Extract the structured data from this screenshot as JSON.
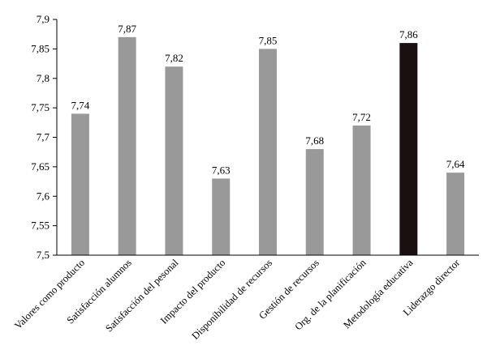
{
  "chart_data": {
    "type": "bar",
    "categories": [
      "Valores como producto",
      "Satisfacción alumnos",
      "Satisfacción del pesonal",
      "Impacto del producto",
      "Disponibilidad de recursos",
      "Gestión de recursos",
      "Org. de la planificación",
      "Metodología educativa",
      "Liderazgo director"
    ],
    "values": [
      7.74,
      7.87,
      7.82,
      7.63,
      7.85,
      7.68,
      7.72,
      7.86,
      7.64
    ],
    "data_labels": [
      "7,74",
      "7,87",
      "7,82",
      "7,63",
      "7,85",
      "7,68",
      "7,72",
      "7,86",
      "7,64"
    ],
    "ylim": [
      7.5,
      7.9
    ],
    "y_ticks": [
      7.5,
      7.55,
      7.6,
      7.65,
      7.7,
      7.75,
      7.8,
      7.85,
      7.9
    ],
    "y_tick_labels": [
      "7,5",
      "7,55",
      "7,6",
      "7,65",
      "7,7",
      "7,75",
      "7,8",
      "7,85",
      "7,9"
    ],
    "bar_colors": [
      "#999999",
      "#999999",
      "#999999",
      "#999999",
      "#999999",
      "#999999",
      "#999999",
      "#1a1010",
      "#999999"
    ],
    "grid": false,
    "title": "",
    "xlabel": "",
    "ylabel": ""
  }
}
